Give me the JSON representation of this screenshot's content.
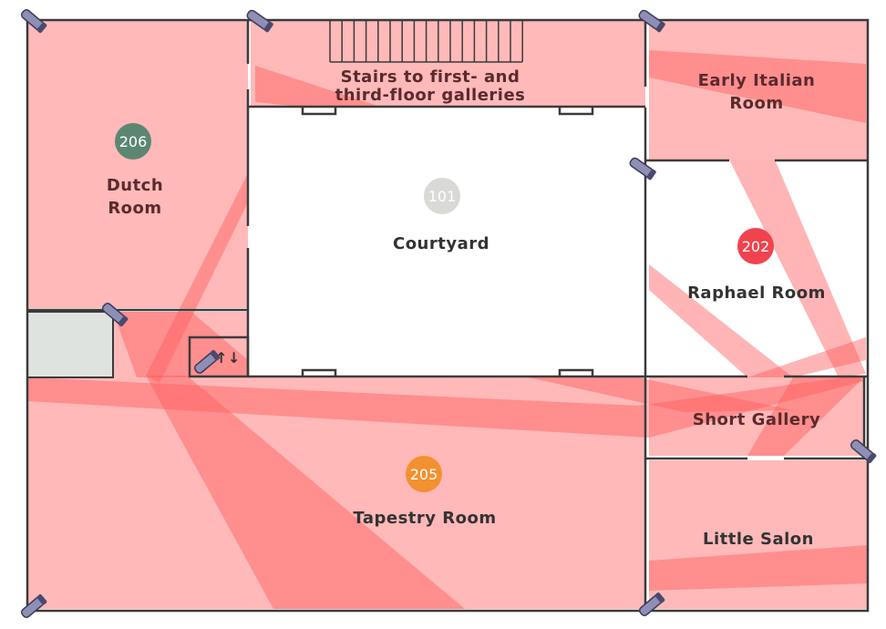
{
  "rooms": [
    {
      "name": "dutch-room",
      "number": "206",
      "lines": [
        "Dutch",
        "Room"
      ],
      "badge_color": "#5b8772"
    },
    {
      "name": "courtyard",
      "number": "101",
      "lines": [
        "Courtyard"
      ],
      "badge_color": "#d9d9d6"
    },
    {
      "name": "raphael-room",
      "number": "202",
      "lines": [
        "Raphael Room"
      ],
      "badge_color": "#f0434e"
    },
    {
      "name": "tapestry-room",
      "number": "205",
      "lines": [
        "Tapestry Room"
      ],
      "badge_color": "#f39130"
    }
  ],
  "labels": {
    "stairs_line1": "Stairs to first- and",
    "stairs_line2": "third-floor galleries",
    "early_italian_line1": "Early Italian",
    "early_italian_line2": "Room",
    "short_gallery": "Short Gallery",
    "little_salon": "Little Salon",
    "elevator": "↑↓"
  },
  "colors": {
    "coverage": "#ff8a8a",
    "coverage_dense": "#ff5a5a",
    "wall": "#3b3b3b",
    "camera": "#8f8fb5",
    "blocked": "#dfe3df"
  },
  "cameras": [
    {
      "name": "camera-nw-corner"
    },
    {
      "name": "camera-top-center"
    },
    {
      "name": "camera-top-right"
    },
    {
      "name": "camera-courtyard-east"
    },
    {
      "name": "camera-dutch-south"
    },
    {
      "name": "camera-elevator"
    },
    {
      "name": "camera-short-gallery-east"
    },
    {
      "name": "camera-sw-corner"
    },
    {
      "name": "camera-bottom-right"
    }
  ]
}
